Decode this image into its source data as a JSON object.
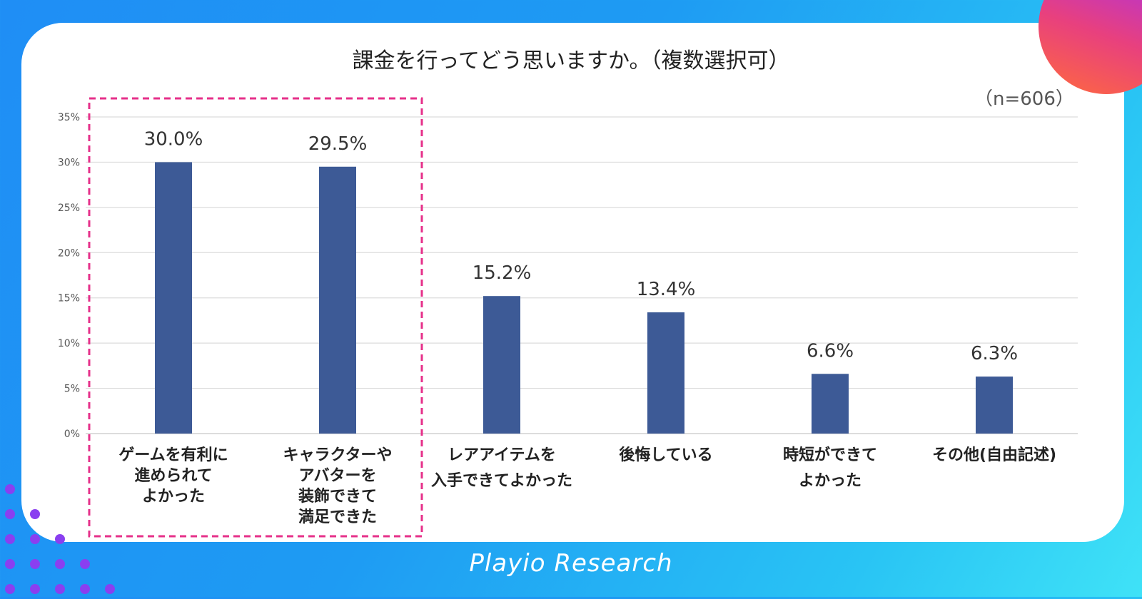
{
  "chart_data": {
    "type": "bar",
    "title": "課金を行ってどう思いますか。（複数選択可）",
    "sample_size": "（n=606）",
    "categories": [
      [
        "ゲームを有利に",
        "進められて",
        "よかった"
      ],
      [
        "キャラクターや",
        "アバターを",
        "装飾できて",
        "満足できた"
      ],
      [
        "レアアイテムを",
        "入手できてよかった"
      ],
      [
        "後悔している"
      ],
      [
        "時短ができて",
        "よかった"
      ],
      [
        "その他(自由記述)"
      ]
    ],
    "values": [
      30.0,
      29.5,
      15.2,
      13.4,
      6.6,
      6.3
    ],
    "value_labels": [
      "30.0%",
      "29.5%",
      "15.2%",
      "13.4%",
      "6.6%",
      "6.3%"
    ],
    "ylim": [
      0,
      35
    ],
    "yticks": [
      "0%",
      "5%",
      "10%",
      "15%",
      "20%",
      "25%",
      "30%",
      "35%"
    ],
    "grid": true,
    "bar_color": "#3d5a96",
    "highlight_color": "#e6308a",
    "highlighted_categories": [
      0,
      1
    ]
  },
  "brand": "Playio Research",
  "colors": {
    "accent": "#1f8ef5",
    "card": "#ffffff"
  }
}
